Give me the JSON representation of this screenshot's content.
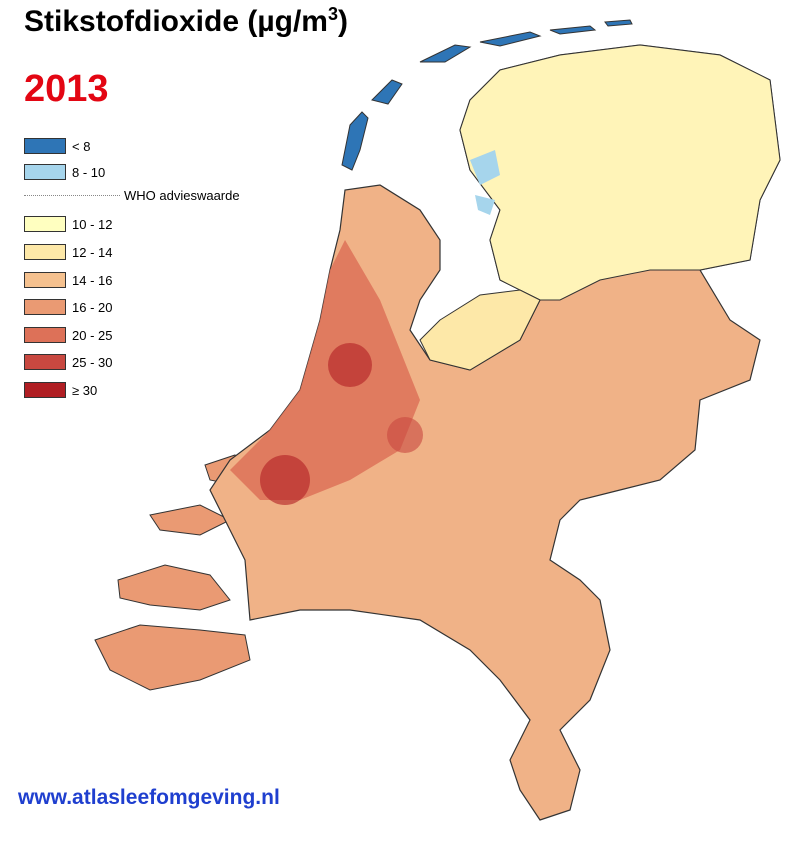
{
  "header": {
    "title": "Stikstofdioxide (µg/m",
    "title_superscript": "3",
    "title_end": ")",
    "year": "2013"
  },
  "legend": {
    "items": [
      {
        "label": "< 8",
        "color": "#2e75b6"
      },
      {
        "label": "8 - 10",
        "color": "#a6d5ec"
      },
      {
        "label": "10 - 12",
        "color": "#ffffc0"
      },
      {
        "label": "12 - 14",
        "color": "#fde8a8"
      },
      {
        "label": "14 - 16",
        "color": "#f5c18f"
      },
      {
        "label": "16 - 20",
        "color": "#ea9a73"
      },
      {
        "label": "20 - 25",
        "color": "#dd7158"
      },
      {
        "label": "25 - 30",
        "color": "#c84840"
      },
      {
        "label": "≥ 30",
        "color": "#b01e23"
      }
    ],
    "who_label": "WHO advieswaarde"
  },
  "footer": {
    "url": "www.atlasleefomgeving.nl"
  }
}
